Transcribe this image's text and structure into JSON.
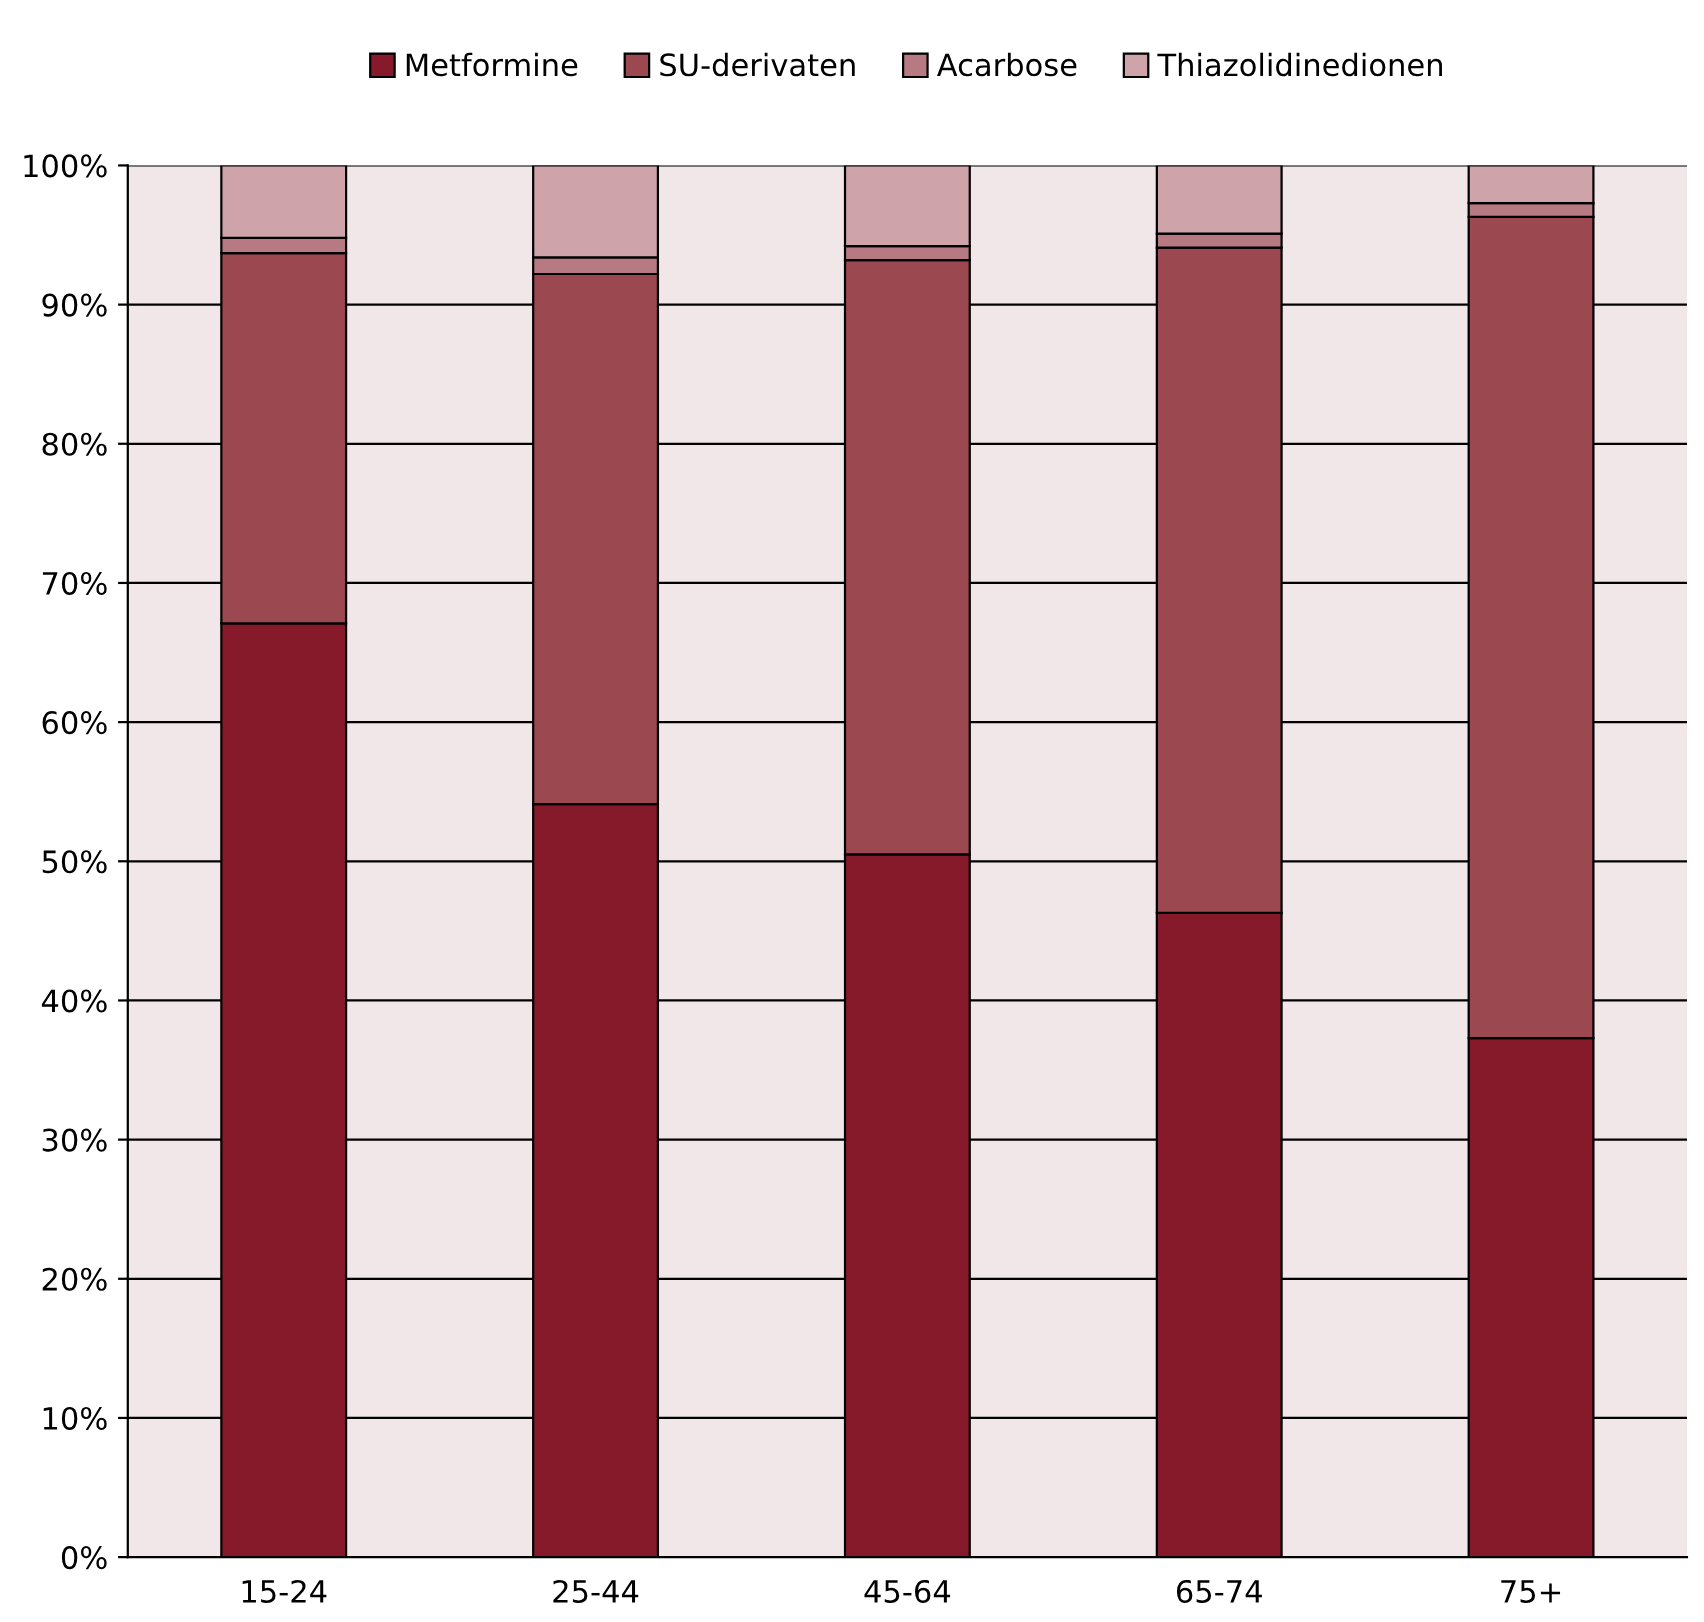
{
  "chart_data": {
    "type": "bar",
    "stacked": true,
    "categories": [
      "15-24",
      "25-44",
      "45-64",
      "65-74",
      "75+"
    ],
    "series": [
      {
        "name": "Metformine",
        "color": "#861a2a",
        "values": [
          67.1,
          54.1,
          50.5,
          46.3,
          37.3
        ]
      },
      {
        "name": "SU-derivaten",
        "color": "#9c4850",
        "values": [
          26.6,
          38.1,
          42.7,
          47.8,
          59.0
        ]
      },
      {
        "name": "Acarbose",
        "color": "#b77a82",
        "values": [
          1.1,
          1.2,
          1.0,
          1.0,
          1.0
        ]
      },
      {
        "name": "Thiazolidinedionen",
        "color": "#cfa3aa",
        "values": [
          5.2,
          6.6,
          5.8,
          4.9,
          2.7
        ]
      }
    ],
    "ylim": [
      0,
      100
    ],
    "yticks": [
      {
        "value": 0,
        "label": "0%"
      },
      {
        "value": 10,
        "label": "10%"
      },
      {
        "value": 20,
        "label": "20%"
      },
      {
        "value": 30,
        "label": "30%"
      },
      {
        "value": 40,
        "label": "40%"
      },
      {
        "value": 50,
        "label": "50%"
      },
      {
        "value": 60,
        "label": "60%"
      },
      {
        "value": 70,
        "label": "70%"
      },
      {
        "value": 80,
        "label": "80%"
      },
      {
        "value": 90,
        "label": "90%"
      },
      {
        "value": 100,
        "label": "100%"
      }
    ],
    "grid": "y",
    "legend": "top"
  }
}
